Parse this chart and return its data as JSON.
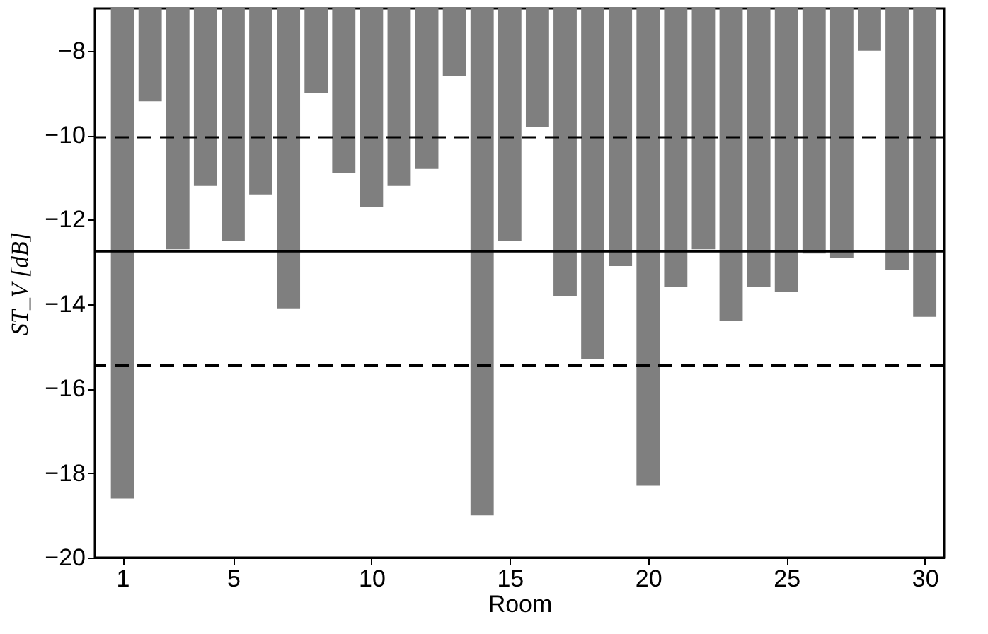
{
  "chart_data": {
    "type": "bar",
    "xlabel": "Room",
    "ylabel": "ST_V [dB]",
    "x": [
      1,
      2,
      3,
      4,
      5,
      6,
      7,
      8,
      9,
      10,
      11,
      12,
      13,
      14,
      15,
      16,
      17,
      18,
      19,
      20,
      21,
      22,
      23,
      24,
      25,
      26,
      27,
      28,
      29,
      30
    ],
    "values": [
      -18.6,
      -9.2,
      -12.7,
      -11.2,
      -12.5,
      -11.4,
      -14.1,
      -9.0,
      -10.9,
      -11.7,
      -11.2,
      -10.8,
      -8.6,
      -19.0,
      -12.5,
      -9.8,
      -13.8,
      -15.3,
      -13.1,
      -18.3,
      -13.6,
      -12.7,
      -14.4,
      -13.6,
      -13.7,
      -12.8,
      -12.9,
      -8.0,
      -13.2,
      -14.3
    ],
    "color": "#7f7f7f",
    "xlim": [
      0,
      30.7
    ],
    "xticks": [
      1,
      5,
      10,
      15,
      20,
      25,
      30
    ],
    "ylim": [
      -20,
      -7
    ],
    "yticks": [
      -20,
      -18,
      -16,
      -14,
      -12,
      -10,
      -8
    ],
    "ref_lines": [
      {
        "axis": "y",
        "value": -10.05,
        "line_style": "dashed",
        "color": "#000000"
      },
      {
        "axis": "y",
        "value": -12.75,
        "line_style": "solid",
        "color": "#000000"
      },
      {
        "axis": "y",
        "value": -15.45,
        "line_style": "dashed",
        "color": "#000000"
      }
    ],
    "grid": false
  }
}
